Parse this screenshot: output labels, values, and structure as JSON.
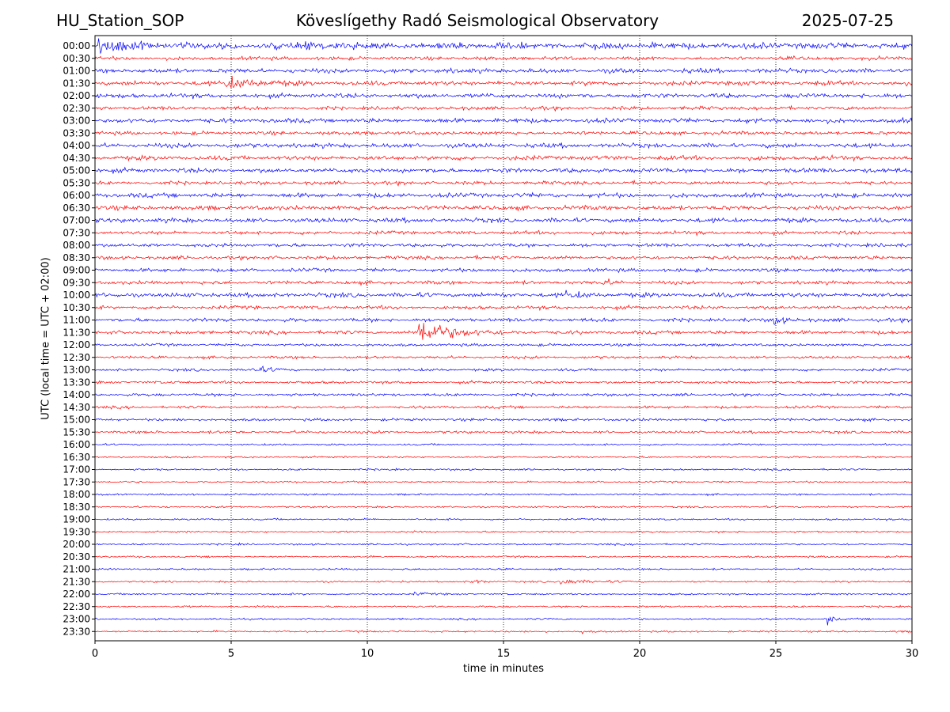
{
  "header": {
    "station": "HU_Station_SOP",
    "title": "Köveslígethy Radó Seismological Observatory",
    "date": "2025-07-25"
  },
  "chart_data": {
    "type": "line",
    "title": "Köveslígethy Radó Seismological Observatory",
    "xlabel": "time in minutes",
    "ylabel": "UTC (local time = UTC + 02:00)",
    "xlim": [
      0,
      30
    ],
    "xticks": [
      0,
      5,
      10,
      15,
      20,
      25,
      30
    ],
    "grid": "vertical dotted lines at x ticks",
    "legend": "none",
    "colors": {
      "even_rows": "#0000ff",
      "odd_rows": "#ff0000",
      "axis": "#000000"
    },
    "rows": [
      "00:00",
      "00:30",
      "01:00",
      "01:30",
      "02:00",
      "02:30",
      "03:00",
      "03:30",
      "04:00",
      "04:30",
      "05:00",
      "05:30",
      "06:00",
      "06:30",
      "07:00",
      "07:30",
      "08:00",
      "08:30",
      "09:00",
      "09:30",
      "10:00",
      "10:30",
      "11:00",
      "11:30",
      "12:00",
      "12:30",
      "13:00",
      "13:30",
      "14:00",
      "14:30",
      "15:00",
      "15:30",
      "16:00",
      "16:30",
      "17:00",
      "17:30",
      "18:00",
      "18:30",
      "19:00",
      "19:30",
      "20:00",
      "20:30",
      "21:00",
      "21:30",
      "22:00",
      "22:30",
      "23:00",
      "23:30"
    ],
    "noise_level": [
      7,
      4,
      5,
      5,
      5,
      4,
      5,
      4,
      5,
      5,
      5,
      4,
      5,
      5,
      5,
      4,
      4,
      4,
      4,
      4,
      5,
      4,
      4,
      4,
      3,
      3,
      3,
      3,
      3,
      3,
      3,
      3,
      2,
      2,
      2,
      2,
      2,
      2,
      2,
      2,
      2,
      2,
      2,
      2,
      2,
      2,
      2,
      2
    ],
    "events": [
      {
        "row": "00:00",
        "start_min": 0.1,
        "peak_amp": 12,
        "decay_min": 0.9,
        "duration_min": 3.5
      },
      {
        "row": "00:00",
        "start_min": 7.6,
        "peak_amp": 6,
        "decay_min": 0.6,
        "duration_min": 1.6
      },
      {
        "row": "01:30",
        "start_min": 4.8,
        "peak_amp": 12,
        "decay_min": 1.0,
        "duration_min": 3.2
      },
      {
        "row": "09:30",
        "start_min": 18.6,
        "peak_amp": 6,
        "decay_min": 0.5,
        "duration_min": 0.9
      },
      {
        "row": "10:00",
        "start_min": 17.2,
        "peak_amp": 6,
        "decay_min": 0.6,
        "duration_min": 2.2
      },
      {
        "row": "11:00",
        "start_min": 24.9,
        "peak_amp": 14,
        "decay_min": 0.3,
        "duration_min": 1.3
      },
      {
        "row": "11:30",
        "start_min": 11.85,
        "peak_amp": 30,
        "decay_min": 1.0,
        "duration_min": 4.5
      },
      {
        "row": "13:00",
        "start_min": 5.7,
        "peak_amp": 7,
        "decay_min": 0.6,
        "duration_min": 1.3
      },
      {
        "row": "13:30",
        "start_min": 7.45,
        "peak_amp": 6,
        "decay_min": 0.05,
        "duration_min": 0.15
      },
      {
        "row": "21:30",
        "start_min": 17.1,
        "peak_amp": 6,
        "decay_min": 0.9,
        "duration_min": 2.6
      },
      {
        "row": "21:30",
        "start_min": 13.8,
        "peak_amp": 3,
        "decay_min": 0.6,
        "duration_min": 0.8
      },
      {
        "row": "22:00",
        "start_min": 11.6,
        "peak_amp": 4,
        "decay_min": 0.5,
        "duration_min": 0.9
      },
      {
        "row": "23:00",
        "start_min": 26.9,
        "peak_amp": 13,
        "decay_min": 0.15,
        "duration_min": 0.5
      },
      {
        "row": "23:30",
        "start_min": 11.1,
        "peak_amp": 9,
        "decay_min": 0.05,
        "duration_min": 0.15
      },
      {
        "row": "23:30",
        "start_min": 17.9,
        "peak_amp": 4,
        "decay_min": 0.1,
        "duration_min": 0.3
      }
    ]
  }
}
